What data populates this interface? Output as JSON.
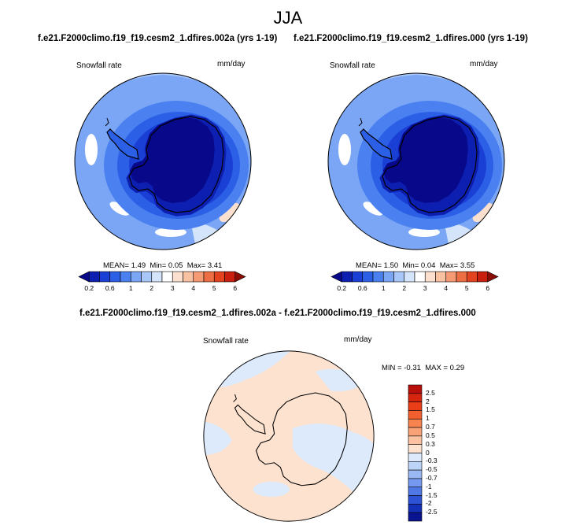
{
  "figure": {
    "season": "JJA",
    "panel_titles": [
      "f.e21.F2000climo.f19_f19.cesm2_1.dfires.002a (yrs 1-19)",
      "f.e21.F2000climo.f19_f19.cesm2_1.dfires.000 (yrs 1-19)"
    ],
    "diff_title": "f.e21.F2000climo.f19_f19.cesm2_1.dfires.002a - f.e21.F2000climo.f19_f19.cesm2_1.dfires.000"
  },
  "chart_data": [
    {
      "type": "heatmap",
      "projection": "south-polar",
      "variable": "Snowfall rate",
      "units": "mm/day",
      "mean": "1.49",
      "min": "0.05",
      "max": "3.41",
      "stat_labels": {
        "mean": "MEAN=",
        "min": "Min=",
        "max": "Max="
      },
      "colorbar": {
        "orientation": "horizontal",
        "tick_labels": [
          "0.2",
          "0.6",
          "1",
          "2",
          "3",
          "4",
          "5",
          "6"
        ],
        "levels": [
          0.2,
          0.4,
          0.6,
          0.8,
          1,
          1.5,
          2,
          2.5,
          3,
          3.5,
          4,
          4.5,
          5,
          5.5,
          6
        ],
        "colors": [
          "#08088a",
          "#0d1fb0",
          "#1a3fd4",
          "#2a5fe6",
          "#4a80ef",
          "#7aa6f5",
          "#a9c6f8",
          "#d4e4fb",
          "#ffffff",
          "#fbe0cf",
          "#f8c1a2",
          "#f59a73",
          "#ee6e43",
          "#e4431f",
          "#c91f0f",
          "#8a0d05"
        ]
      }
    },
    {
      "type": "heatmap",
      "projection": "south-polar",
      "variable": "Snowfall rate",
      "units": "mm/day",
      "mean": "1.50",
      "min": "0.04",
      "max": "3.55",
      "stat_labels": {
        "mean": "MEAN=",
        "min": "Min=",
        "max": "Max="
      },
      "colorbar": {
        "orientation": "horizontal",
        "tick_labels": [
          "0.2",
          "0.6",
          "1",
          "2",
          "3",
          "4",
          "5",
          "6"
        ],
        "levels": [
          0.2,
          0.4,
          0.6,
          0.8,
          1,
          1.5,
          2,
          2.5,
          3,
          3.5,
          4,
          4.5,
          5,
          5.5,
          6
        ],
        "colors": [
          "#08088a",
          "#0d1fb0",
          "#1a3fd4",
          "#2a5fe6",
          "#4a80ef",
          "#7aa6f5",
          "#a9c6f8",
          "#d4e4fb",
          "#ffffff",
          "#fbe0cf",
          "#f8c1a2",
          "#f59a73",
          "#ee6e43",
          "#e4431f",
          "#c91f0f",
          "#8a0d05"
        ]
      }
    },
    {
      "type": "heatmap",
      "projection": "south-polar",
      "variable": "Snowfall rate",
      "units": "mm/day",
      "min_label": "MIN =",
      "min": "-0.31",
      "max_label": "MAX =",
      "max": "0.29",
      "colorbar": {
        "orientation": "vertical",
        "tick_labels": [
          "2.5",
          "2",
          "1.5",
          "1",
          "0.7",
          "0.5",
          "0.3",
          "0",
          "-0.3",
          "-0.5",
          "-0.7",
          "-1",
          "-1.5",
          "-2",
          "-2.5"
        ],
        "colors": [
          "#b80f0a",
          "#d6250f",
          "#ea3e19",
          "#f45f2f",
          "#f7834f",
          "#f9a278",
          "#fbc1a0",
          "#fde2cf",
          "#dceafc",
          "#bcd4f8",
          "#9ab9f4",
          "#7499ee",
          "#4f77e5",
          "#2d52d6",
          "#1530b8",
          "#0a148f"
        ]
      }
    }
  ]
}
